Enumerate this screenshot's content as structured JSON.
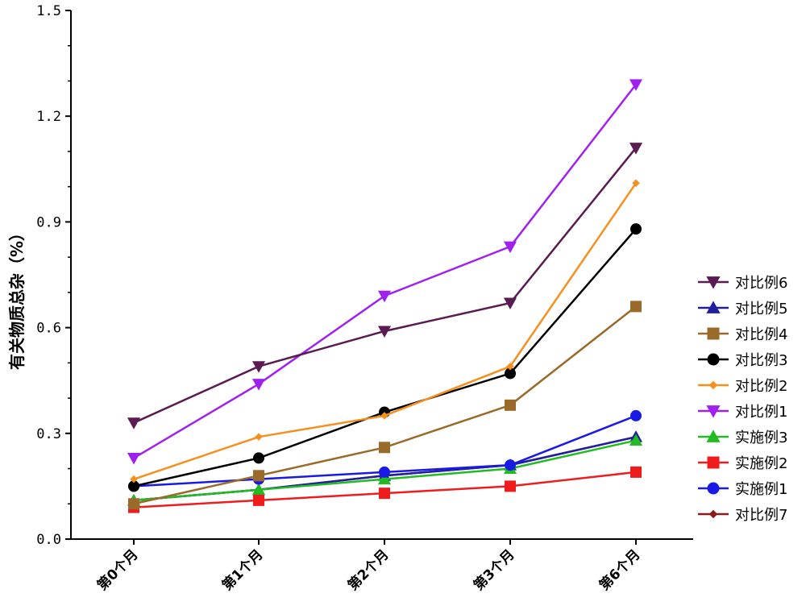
{
  "chart_data": {
    "type": "line",
    "ylabel": "有关物质总杂（%）",
    "xlabel": "",
    "categories": [
      "第0个月",
      "第1个月",
      "第2个月",
      "第3个月",
      "第6个月"
    ],
    "ylim": [
      0.0,
      1.5
    ],
    "yticks": [
      "0.0",
      "0.3",
      "0.6",
      "0.9",
      "1.2",
      "1.5"
    ],
    "ytick_values": [
      0.0,
      0.3,
      0.6,
      0.9,
      1.2,
      1.5
    ],
    "grid": false,
    "legend_position": "right",
    "series": [
      {
        "name": "对比例6",
        "color": "#5a1a52",
        "marker": "triangle-down",
        "values": [
          0.33,
          0.49,
          0.59,
          0.67,
          1.11
        ]
      },
      {
        "name": "对比例5",
        "color": "#1f1fa0",
        "marker": "triangle-up",
        "values": [
          0.11,
          0.14,
          0.18,
          0.21,
          0.29
        ]
      },
      {
        "name": "对比例4",
        "color": "#9a6a2a",
        "marker": "square",
        "values": [
          0.1,
          0.18,
          0.26,
          0.38,
          0.66
        ]
      },
      {
        "name": "对比例3",
        "color": "#000000",
        "marker": "circle",
        "values": [
          0.15,
          0.23,
          0.36,
          0.47,
          0.88
        ]
      },
      {
        "name": "对比例2",
        "color": "#f5901e",
        "marker": "diamond",
        "values": [
          0.17,
          0.29,
          0.35,
          0.49,
          1.01
        ]
      },
      {
        "name": "对比例1",
        "color": "#a020f0",
        "marker": "triangle-down",
        "values": [
          0.23,
          0.44,
          0.69,
          0.83,
          1.29
        ]
      },
      {
        "name": "实施例3",
        "color": "#22bb22",
        "marker": "triangle-up",
        "values": [
          0.11,
          0.14,
          0.17,
          0.2,
          0.28
        ]
      },
      {
        "name": "实施例2",
        "color": "#ee1c1c",
        "marker": "square",
        "values": [
          0.09,
          0.11,
          0.13,
          0.15,
          0.19
        ]
      },
      {
        "name": "实施例1",
        "color": "#1a1ae6",
        "marker": "circle",
        "values": [
          0.15,
          0.17,
          0.19,
          0.21,
          0.35
        ]
      },
      {
        "name": "对比例7",
        "color": "#8b1a1a",
        "marker": "diamond",
        "values": [
          0.11,
          0.14,
          0.18,
          0.21,
          0.29
        ]
      }
    ],
    "draw_order": [
      9,
      1,
      6,
      7,
      8,
      2,
      3,
      4,
      5,
      0
    ]
  }
}
